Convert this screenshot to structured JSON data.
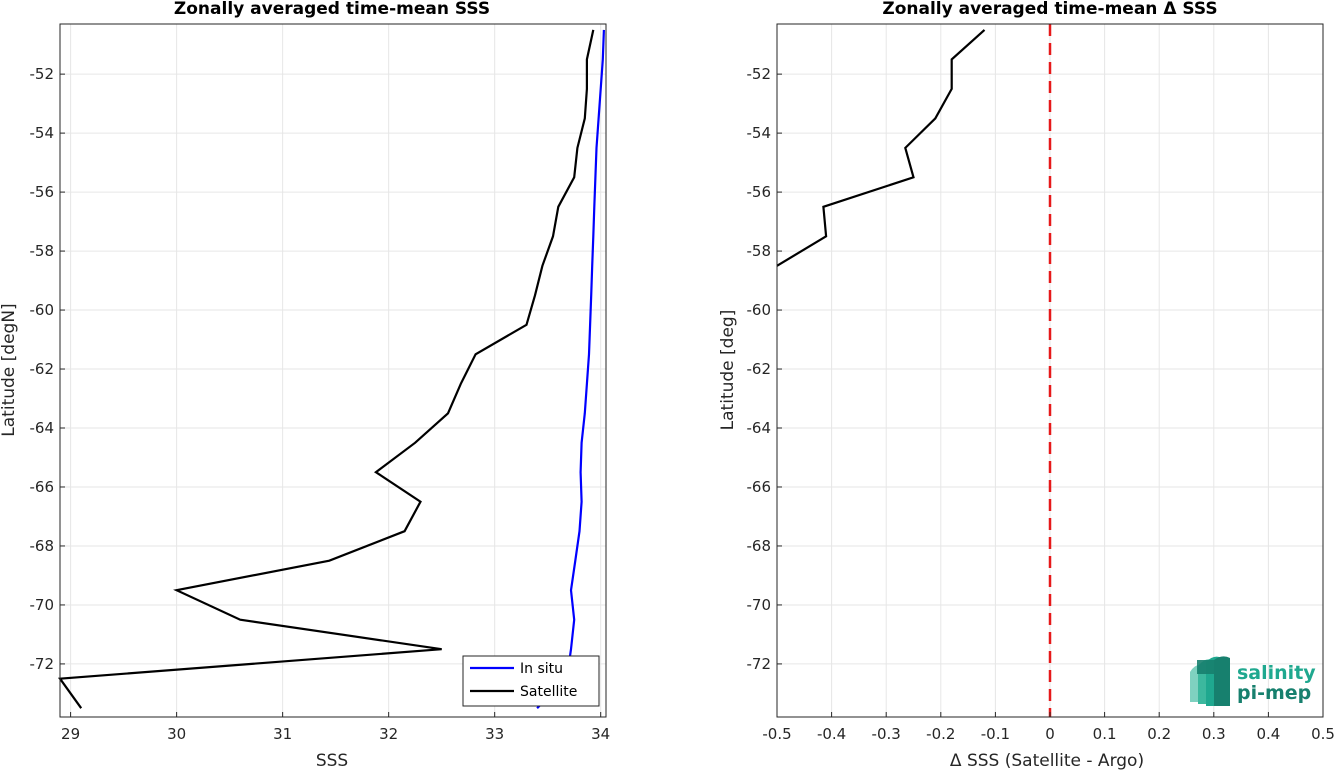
{
  "chart_data": [
    {
      "type": "line",
      "title": "Zonally averaged time-mean SSS",
      "xlabel": "SSS",
      "ylabel": "Latitude [degN]",
      "xlim": [
        28.9,
        34.05
      ],
      "ylim": [
        -73.8,
        -50.3
      ],
      "xticks": [
        29,
        30,
        31,
        32,
        33,
        34
      ],
      "yticks": [
        -72,
        -70,
        -68,
        -66,
        -64,
        -62,
        -60,
        -58,
        -56,
        -54,
        -52
      ],
      "grid": true,
      "legend": {
        "position": "bottom-right",
        "entries": [
          "In situ",
          "Satellite"
        ]
      },
      "series": [
        {
          "name": "In situ",
          "color": "#0000ff",
          "points": [
            [
              34.03,
              -50.5
            ],
            [
              34.02,
              -51.5
            ],
            [
              34.0,
              -52.5
            ],
            [
              33.98,
              -53.5
            ],
            [
              33.96,
              -54.5
            ],
            [
              33.95,
              -55.5
            ],
            [
              33.94,
              -56.5
            ],
            [
              33.93,
              -57.5
            ],
            [
              33.92,
              -58.5
            ],
            [
              33.91,
              -59.5
            ],
            [
              33.9,
              -60.5
            ],
            [
              33.89,
              -61.5
            ],
            [
              33.87,
              -62.5
            ],
            [
              33.85,
              -63.5
            ],
            [
              33.82,
              -64.5
            ],
            [
              33.81,
              -65.5
            ],
            [
              33.82,
              -66.5
            ],
            [
              33.8,
              -67.5
            ],
            [
              33.76,
              -68.5
            ],
            [
              33.72,
              -69.5
            ],
            [
              33.75,
              -70.5
            ],
            [
              33.72,
              -71.5
            ],
            [
              33.68,
              -72.5
            ],
            [
              33.4,
              -73.5
            ]
          ]
        },
        {
          "name": "Satellite",
          "color": "#000000",
          "points": [
            [
              33.93,
              -50.5
            ],
            [
              33.87,
              -51.5
            ],
            [
              33.87,
              -52.5
            ],
            [
              33.85,
              -53.5
            ],
            [
              33.78,
              -54.5
            ],
            [
              33.75,
              -55.5
            ],
            [
              33.6,
              -56.5
            ],
            [
              33.55,
              -57.5
            ],
            [
              33.45,
              -58.5
            ],
            [
              33.38,
              -59.5
            ],
            [
              33.3,
              -60.5
            ],
            [
              32.82,
              -61.5
            ],
            [
              32.68,
              -62.5
            ],
            [
              32.56,
              -63.5
            ],
            [
              32.25,
              -64.5
            ],
            [
              31.88,
              -65.5
            ],
            [
              32.3,
              -66.5
            ],
            [
              32.15,
              -67.5
            ],
            [
              31.44,
              -68.5
            ],
            [
              30.0,
              -69.5
            ],
            [
              30.6,
              -70.5
            ],
            [
              32.5,
              -71.5
            ],
            [
              28.9,
              -72.5
            ],
            [
              29.1,
              -73.5
            ]
          ]
        }
      ]
    },
    {
      "type": "line",
      "title": "Zonally averaged time-mean Δ SSS",
      "xlabel": "Δ SSS (Satellite - Argo)",
      "ylabel": "Latitude [deg]",
      "xlim": [
        -0.5,
        0.5
      ],
      "ylim": [
        -73.8,
        -50.3
      ],
      "xticks": [
        -0.5,
        -0.4,
        -0.3,
        -0.2,
        -0.1,
        0,
        0.1,
        0.2,
        0.3,
        0.4,
        0.5
      ],
      "yticks": [
        -72,
        -70,
        -68,
        -66,
        -64,
        -62,
        -60,
        -58,
        -56,
        -54,
        -52
      ],
      "grid": true,
      "reference_line": {
        "x": 0,
        "color": "#e6191a",
        "style": "dashed"
      },
      "series": [
        {
          "color": "#000000",
          "points": [
            [
              -0.12,
              -50.5
            ],
            [
              -0.18,
              -51.5
            ],
            [
              -0.18,
              -52.5
            ],
            [
              -0.21,
              -53.5
            ],
            [
              -0.265,
              -54.5
            ],
            [
              -0.25,
              -55.5
            ],
            [
              -0.415,
              -56.5
            ],
            [
              -0.41,
              -57.5
            ],
            [
              -0.5,
              -58.5
            ]
          ]
        }
      ]
    }
  ],
  "logo": {
    "line1": "salinity",
    "line2": "pi-mep",
    "colors": [
      "#1fa88f",
      "#17806e",
      "#7fd1c0"
    ]
  }
}
